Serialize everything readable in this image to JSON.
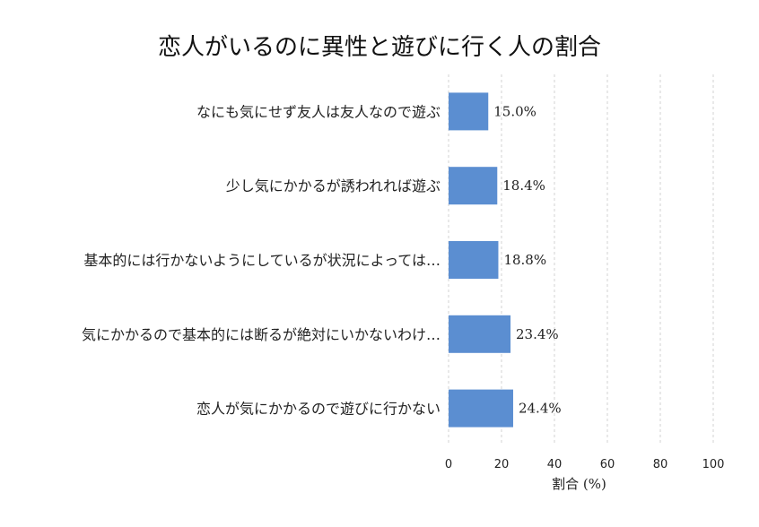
{
  "chart_data": {
    "type": "bar",
    "orientation": "horizontal",
    "title": "恋人がいるのに異性と遊びに行く人の割合",
    "xlabel": "割合 (%)",
    "ylabel": "",
    "xlim": [
      0,
      100
    ],
    "x_ticks": [
      0,
      20,
      40,
      60,
      80,
      100
    ],
    "grid": "vertical dashed",
    "categories": [
      "なにも気にせず友人は友人なので遊ぶ",
      "少し気にかかるが誘われれば遊ぶ",
      "基本的には行かないようにしているが状況によっては…",
      "気にかかるので基本的には断るが絶対にいかないわけ…",
      "恋人が気にかかるので遊びに行かない"
    ],
    "values": [
      15.0,
      18.4,
      18.8,
      23.4,
      24.4
    ],
    "value_labels": [
      "15.0%",
      "18.4%",
      "18.8%",
      "23.4%",
      "24.4%"
    ],
    "bar_color": "#5b8ed1"
  }
}
